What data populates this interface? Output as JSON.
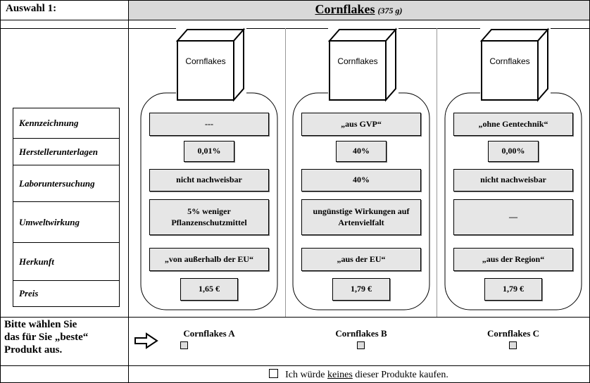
{
  "header": {
    "label": "Auswahl 1:",
    "title": "Cornflakes",
    "subtitle": "(375 g)"
  },
  "attributes": [
    "Kennzeichnung",
    "Herstellerunterlagen",
    "Laboruntersuchung",
    "Umweltwirkung",
    "Herkunft",
    "Preis"
  ],
  "products": [
    {
      "box_label": "Cornflakes",
      "values": [
        "---",
        "0,01%",
        "nicht nachweisbar",
        "5% weniger Pflanzenschutzmittel",
        "„von außerhalb der EU“",
        "1,65 €"
      ]
    },
    {
      "box_label": "Cornflakes",
      "values": [
        "„aus GVP“",
        "40%",
        "40%",
        "ungünstige Wirkungen auf Artenvielfalt",
        "„aus der EU“",
        "1,79 €"
      ]
    },
    {
      "box_label": "Cornflakes",
      "values": [
        "„ohne Gentechnik“",
        "0,00%",
        "nicht nachweisbar",
        "—",
        "„aus der Region“",
        "1,79 €"
      ]
    }
  ],
  "choice": {
    "prompt": [
      "Bitte wählen Sie",
      "das für Sie „beste“",
      "Produkt aus."
    ],
    "options": [
      "Cornflakes A",
      "Cornflakes B",
      "Cornflakes C"
    ],
    "none": [
      "Ich würde ",
      "keines",
      " dieser Produkte kaufen."
    ]
  }
}
